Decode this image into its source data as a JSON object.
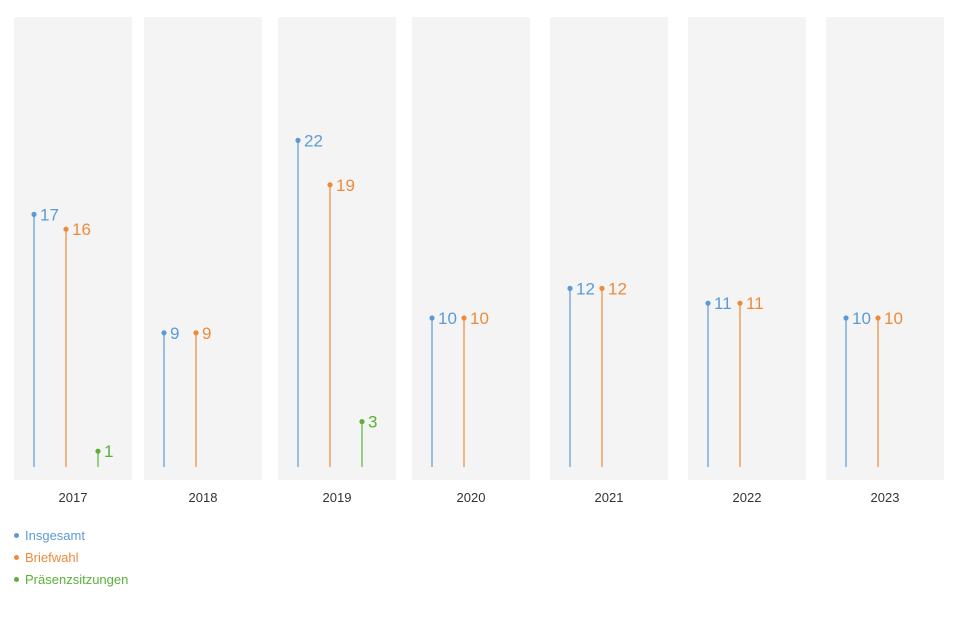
{
  "chart_data": {
    "type": "lollipop",
    "categories": [
      "2017",
      "2018",
      "2019",
      "2020",
      "2021",
      "2022",
      "2023"
    ],
    "series": [
      {
        "name": "Insgesamt",
        "color": "#5b9bd5",
        "values": [
          17,
          9,
          22,
          10,
          12,
          11,
          10
        ]
      },
      {
        "name": "Briefwahl",
        "color": "#ed8b3a",
        "values": [
          16,
          9,
          19,
          10,
          12,
          11,
          10
        ]
      },
      {
        "name": "Präsenzsitzungen",
        "color": "#5cb038",
        "values": [
          1,
          null,
          3,
          null,
          null,
          null,
          null
        ]
      }
    ],
    "title": "",
    "xlabel": "",
    "ylabel": "",
    "legend_position": "bottom-left",
    "grid": false,
    "panel_background": "#f4f4f4"
  }
}
